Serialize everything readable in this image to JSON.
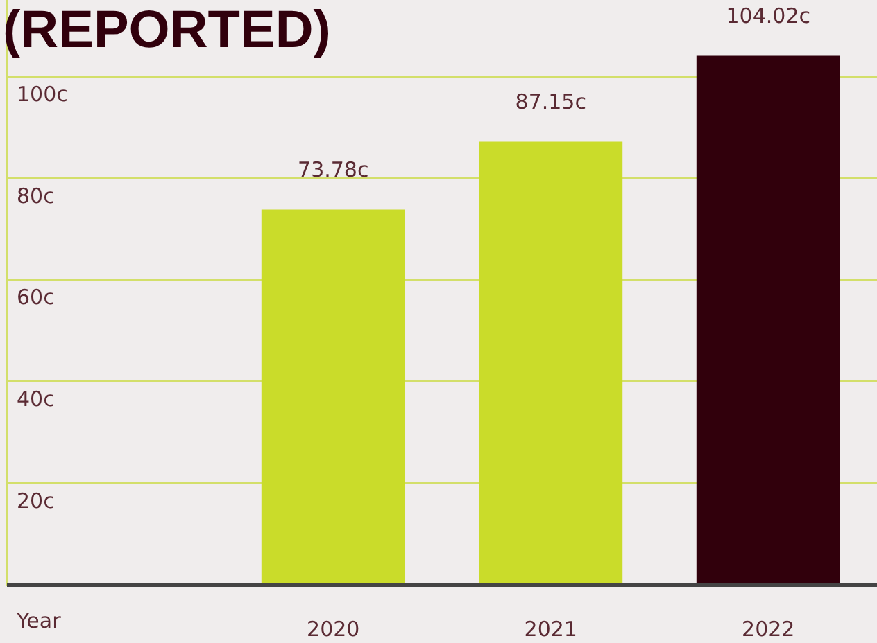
{
  "chart_data": {
    "type": "bar",
    "title": "(REPORTED)",
    "xlabel": "Year",
    "categories": [
      null,
      "2020",
      "2021",
      "2022"
    ],
    "values": [
      null,
      73.78,
      87.15,
      104.02
    ],
    "colors": [
      "#cadc2a",
      "#cadc2a",
      "#cadc2a",
      "#31000c"
    ],
    "value_labels": [
      null,
      "73.78c",
      "87.15c",
      "104.02c"
    ],
    "ylim": [
      0,
      115
    ],
    "yticks": [
      {
        "value": 0,
        "label": null
      },
      {
        "value": 20,
        "label": "20c"
      },
      {
        "value": 40,
        "label": "40c"
      },
      {
        "value": 60,
        "label": "60c"
      },
      {
        "value": 80,
        "label": "80c"
      },
      {
        "value": 100,
        "label": "100c"
      }
    ],
    "grid": "y",
    "legend": false
  }
}
